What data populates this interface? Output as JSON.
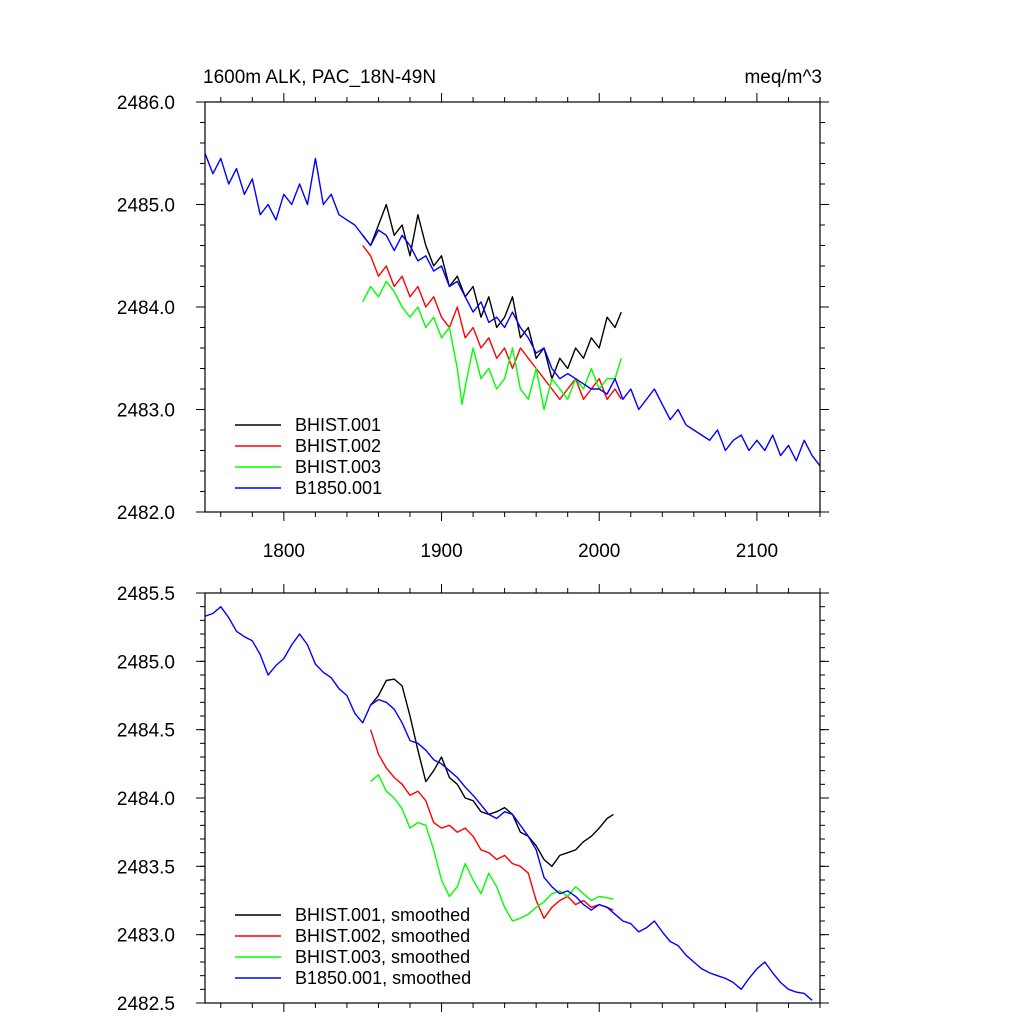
{
  "chart_data": [
    {
      "type": "line",
      "title": "1600m ALK, PAC_18N-49N",
      "units": "meq/m^3",
      "xlim": [
        1750,
        2140
      ],
      "ylim": [
        2482.0,
        2486.0
      ],
      "xticks": [
        1800,
        1900,
        2000,
        2100
      ],
      "xtick_labels": [
        "1800",
        "1900",
        "2000",
        "2100"
      ],
      "yticks": [
        2482.0,
        2483.0,
        2484.0,
        2485.0,
        2486.0
      ],
      "ytick_labels": [
        "2482.0",
        "2483.0",
        "2484.0",
        "2485.0",
        "2486.0"
      ],
      "legend_position": "bottom-left",
      "series": [
        {
          "name": "BHIST.001",
          "color": "#000000",
          "x": [
            1850,
            1855,
            1860,
            1865,
            1870,
            1875,
            1880,
            1885,
            1890,
            1895,
            1900,
            1905,
            1910,
            1915,
            1920,
            1925,
            1930,
            1935,
            1940,
            1945,
            1950,
            1955,
            1960,
            1965,
            1970,
            1975,
            1980,
            1985,
            1990,
            1995,
            2000,
            2005,
            2010,
            2014
          ],
          "y": [
            2484.7,
            2484.6,
            2484.8,
            2485.0,
            2484.7,
            2484.8,
            2484.5,
            2484.9,
            2484.6,
            2484.4,
            2484.5,
            2484.2,
            2484.3,
            2484.1,
            2484.2,
            2483.9,
            2484.1,
            2483.8,
            2483.9,
            2484.1,
            2483.7,
            2483.8,
            2483.5,
            2483.6,
            2483.3,
            2483.5,
            2483.4,
            2483.6,
            2483.5,
            2483.7,
            2483.6,
            2483.9,
            2483.8,
            2483.95
          ]
        },
        {
          "name": "BHIST.002",
          "color": "#ff0000",
          "x": [
            1850,
            1855,
            1860,
            1865,
            1870,
            1875,
            1880,
            1885,
            1890,
            1895,
            1900,
            1905,
            1910,
            1915,
            1920,
            1925,
            1930,
            1935,
            1940,
            1945,
            1950,
            1955,
            1960,
            1965,
            1970,
            1975,
            1980,
            1985,
            1990,
            1995,
            2000,
            2005,
            2010,
            2014
          ],
          "y": [
            2484.6,
            2484.5,
            2484.3,
            2484.4,
            2484.2,
            2484.3,
            2484.1,
            2484.2,
            2484.0,
            2484.1,
            2483.9,
            2483.8,
            2484.0,
            2483.7,
            2483.8,
            2483.6,
            2483.7,
            2483.5,
            2483.6,
            2483.4,
            2483.6,
            2483.5,
            2483.4,
            2483.3,
            2483.2,
            2483.1,
            2483.2,
            2483.3,
            2483.1,
            2483.2,
            2483.3,
            2483.1,
            2483.2,
            2483.1
          ]
        },
        {
          "name": "BHIST.003",
          "color": "#00ff00",
          "x": [
            1850,
            1855,
            1860,
            1865,
            1870,
            1875,
            1880,
            1885,
            1890,
            1895,
            1900,
            1905,
            1910,
            1913,
            1916,
            1920,
            1925,
            1930,
            1935,
            1940,
            1945,
            1950,
            1955,
            1960,
            1965,
            1970,
            1975,
            1980,
            1985,
            1990,
            1995,
            2000,
            2005,
            2010,
            2014
          ],
          "y": [
            2484.05,
            2484.2,
            2484.1,
            2484.25,
            2484.15,
            2484.0,
            2483.9,
            2484.0,
            2483.8,
            2483.9,
            2483.7,
            2483.8,
            2483.4,
            2483.05,
            2483.3,
            2483.6,
            2483.3,
            2483.4,
            2483.2,
            2483.3,
            2483.6,
            2483.2,
            2483.1,
            2483.4,
            2483.0,
            2483.3,
            2483.2,
            2483.1,
            2483.3,
            2483.2,
            2483.4,
            2483.2,
            2483.3,
            2483.3,
            2483.5
          ]
        },
        {
          "name": "B1850.001",
          "color": "#0000ff",
          "x": [
            1750,
            1755,
            1760,
            1765,
            1770,
            1775,
            1780,
            1785,
            1790,
            1795,
            1800,
            1805,
            1810,
            1815,
            1820,
            1825,
            1830,
            1835,
            1840,
            1845,
            1850,
            1855,
            1860,
            1865,
            1870,
            1875,
            1880,
            1885,
            1890,
            1895,
            1900,
            1905,
            1910,
            1915,
            1920,
            1925,
            1930,
            1935,
            1940,
            1945,
            1950,
            1955,
            1960,
            1965,
            1970,
            1975,
            1980,
            1985,
            1990,
            1995,
            2000,
            2005,
            2010,
            2015,
            2020,
            2025,
            2030,
            2035,
            2040,
            2045,
            2050,
            2055,
            2060,
            2065,
            2070,
            2075,
            2080,
            2085,
            2090,
            2095,
            2100,
            2105,
            2110,
            2115,
            2120,
            2125,
            2130,
            2135,
            2140
          ],
          "y": [
            2485.5,
            2485.3,
            2485.45,
            2485.2,
            2485.35,
            2485.1,
            2485.25,
            2484.9,
            2485.0,
            2484.85,
            2485.1,
            2485.0,
            2485.2,
            2485.0,
            2485.45,
            2485.0,
            2485.1,
            2484.9,
            2484.85,
            2484.8,
            2484.7,
            2484.6,
            2484.75,
            2484.7,
            2484.55,
            2484.7,
            2484.6,
            2484.45,
            2484.5,
            2484.35,
            2484.4,
            2484.2,
            2484.25,
            2484.1,
            2483.95,
            2484.05,
            2483.85,
            2483.9,
            2483.8,
            2483.95,
            2483.8,
            2483.7,
            2483.55,
            2483.6,
            2483.4,
            2483.3,
            2483.35,
            2483.3,
            2483.25,
            2483.2,
            2483.2,
            2483.15,
            2483.3,
            2483.1,
            2483.2,
            2483.0,
            2483.1,
            2483.2,
            2483.05,
            2482.9,
            2483.0,
            2482.85,
            2482.8,
            2482.75,
            2482.7,
            2482.8,
            2482.6,
            2482.7,
            2482.75,
            2482.6,
            2482.7,
            2482.6,
            2482.75,
            2482.55,
            2482.65,
            2482.5,
            2482.7,
            2482.55,
            2482.45
          ]
        }
      ]
    },
    {
      "type": "line",
      "title": "",
      "xlim": [
        1750,
        2140
      ],
      "ylim": [
        2482.5,
        2485.5
      ],
      "xticks": [
        1800,
        1900,
        2000,
        2100
      ],
      "xtick_labels": [],
      "yticks": [
        2482.5,
        2483.0,
        2483.5,
        2484.0,
        2484.5,
        2485.0,
        2485.5
      ],
      "ytick_labels": [
        "2482.5",
        "2483.0",
        "2483.5",
        "2484.0",
        "2484.5",
        "2485.0",
        "2485.5"
      ],
      "legend_position": "bottom-left",
      "series": [
        {
          "name": "BHIST.001, smoothed",
          "color": "#000000",
          "x": [
            1855,
            1860,
            1865,
            1870,
            1875,
            1880,
            1885,
            1890,
            1895,
            1900,
            1905,
            1910,
            1915,
            1920,
            1925,
            1930,
            1935,
            1940,
            1945,
            1950,
            1955,
            1960,
            1965,
            1970,
            1975,
            1980,
            1985,
            1990,
            1995,
            2000,
            2005,
            2009
          ],
          "y": [
            2484.68,
            2484.75,
            2484.86,
            2484.87,
            2484.82,
            2484.6,
            2484.35,
            2484.12,
            2484.2,
            2484.3,
            2484.15,
            2484.1,
            2484.0,
            2483.98,
            2483.9,
            2483.88,
            2483.9,
            2483.93,
            2483.88,
            2483.75,
            2483.72,
            2483.65,
            2483.55,
            2483.5,
            2483.58,
            2483.6,
            2483.62,
            2483.68,
            2483.72,
            2483.78,
            2483.85,
            2483.88
          ]
        },
        {
          "name": "BHIST.002, smoothed",
          "color": "#ff0000",
          "x": [
            1855,
            1860,
            1865,
            1870,
            1875,
            1880,
            1885,
            1890,
            1895,
            1900,
            1905,
            1910,
            1915,
            1920,
            1925,
            1930,
            1935,
            1940,
            1945,
            1950,
            1955,
            1960,
            1965,
            1970,
            1975,
            1980,
            1985,
            1990,
            1995,
            2000,
            2005,
            2009
          ],
          "y": [
            2484.5,
            2484.32,
            2484.22,
            2484.15,
            2484.1,
            2484.02,
            2484.05,
            2483.98,
            2483.82,
            2483.78,
            2483.8,
            2483.75,
            2483.78,
            2483.72,
            2483.62,
            2483.6,
            2483.55,
            2483.58,
            2483.52,
            2483.5,
            2483.45,
            2483.25,
            2483.12,
            2483.2,
            2483.25,
            2483.28,
            2483.22,
            2483.25,
            2483.2,
            2483.22,
            2483.2,
            2483.18
          ]
        },
        {
          "name": "BHIST.003, smoothed",
          "color": "#00ff00",
          "x": [
            1855,
            1860,
            1865,
            1870,
            1875,
            1880,
            1885,
            1890,
            1895,
            1900,
            1905,
            1910,
            1915,
            1920,
            1925,
            1930,
            1935,
            1940,
            1945,
            1950,
            1955,
            1960,
            1965,
            1970,
            1975,
            1980,
            1985,
            1990,
            1995,
            2000,
            2005,
            2009
          ],
          "y": [
            2484.12,
            2484.17,
            2484.05,
            2484.0,
            2483.92,
            2483.78,
            2483.82,
            2483.8,
            2483.62,
            2483.4,
            2483.28,
            2483.35,
            2483.52,
            2483.4,
            2483.3,
            2483.45,
            2483.35,
            2483.2,
            2483.1,
            2483.12,
            2483.15,
            2483.2,
            2483.24,
            2483.3,
            2483.32,
            2483.28,
            2483.35,
            2483.3,
            2483.25,
            2483.28,
            2483.27,
            2483.26
          ]
        },
        {
          "name": "B1850.001, smoothed",
          "color": "#0000ff",
          "x": [
            1750,
            1755,
            1760,
            1765,
            1770,
            1775,
            1780,
            1785,
            1790,
            1795,
            1800,
            1805,
            1810,
            1815,
            1820,
            1825,
            1830,
            1835,
            1840,
            1845,
            1850,
            1855,
            1860,
            1865,
            1870,
            1875,
            1880,
            1885,
            1890,
            1895,
            1900,
            1905,
            1910,
            1915,
            1920,
            1925,
            1930,
            1935,
            1940,
            1945,
            1950,
            1955,
            1960,
            1965,
            1970,
            1975,
            1980,
            1985,
            1990,
            1995,
            2000,
            2005,
            2010,
            2015,
            2020,
            2025,
            2030,
            2035,
            2040,
            2045,
            2050,
            2055,
            2060,
            2065,
            2070,
            2075,
            2080,
            2085,
            2090,
            2095,
            2100,
            2105,
            2110,
            2115,
            2120,
            2125,
            2130,
            2135
          ],
          "y": [
            2485.33,
            2485.35,
            2485.4,
            2485.32,
            2485.22,
            2485.18,
            2485.15,
            2485.05,
            2484.9,
            2484.97,
            2485.02,
            2485.12,
            2485.2,
            2485.12,
            2484.98,
            2484.92,
            2484.88,
            2484.8,
            2484.75,
            2484.62,
            2484.55,
            2484.68,
            2484.72,
            2484.7,
            2484.65,
            2484.55,
            2484.42,
            2484.4,
            2484.35,
            2484.28,
            2484.25,
            2484.2,
            2484.15,
            2484.08,
            2484.02,
            2483.95,
            2483.88,
            2483.85,
            2483.9,
            2483.88,
            2483.8,
            2483.72,
            2483.62,
            2483.42,
            2483.35,
            2483.3,
            2483.32,
            2483.28,
            2483.22,
            2483.18,
            2483.22,
            2483.2,
            2483.15,
            2483.1,
            2483.08,
            2483.02,
            2483.05,
            2483.1,
            2483.02,
            2482.95,
            2482.92,
            2482.85,
            2482.8,
            2482.75,
            2482.72,
            2482.7,
            2482.68,
            2482.65,
            2482.6,
            2482.68,
            2482.75,
            2482.8,
            2482.72,
            2482.65,
            2482.6,
            2482.58,
            2482.57,
            2482.52
          ]
        }
      ]
    }
  ]
}
